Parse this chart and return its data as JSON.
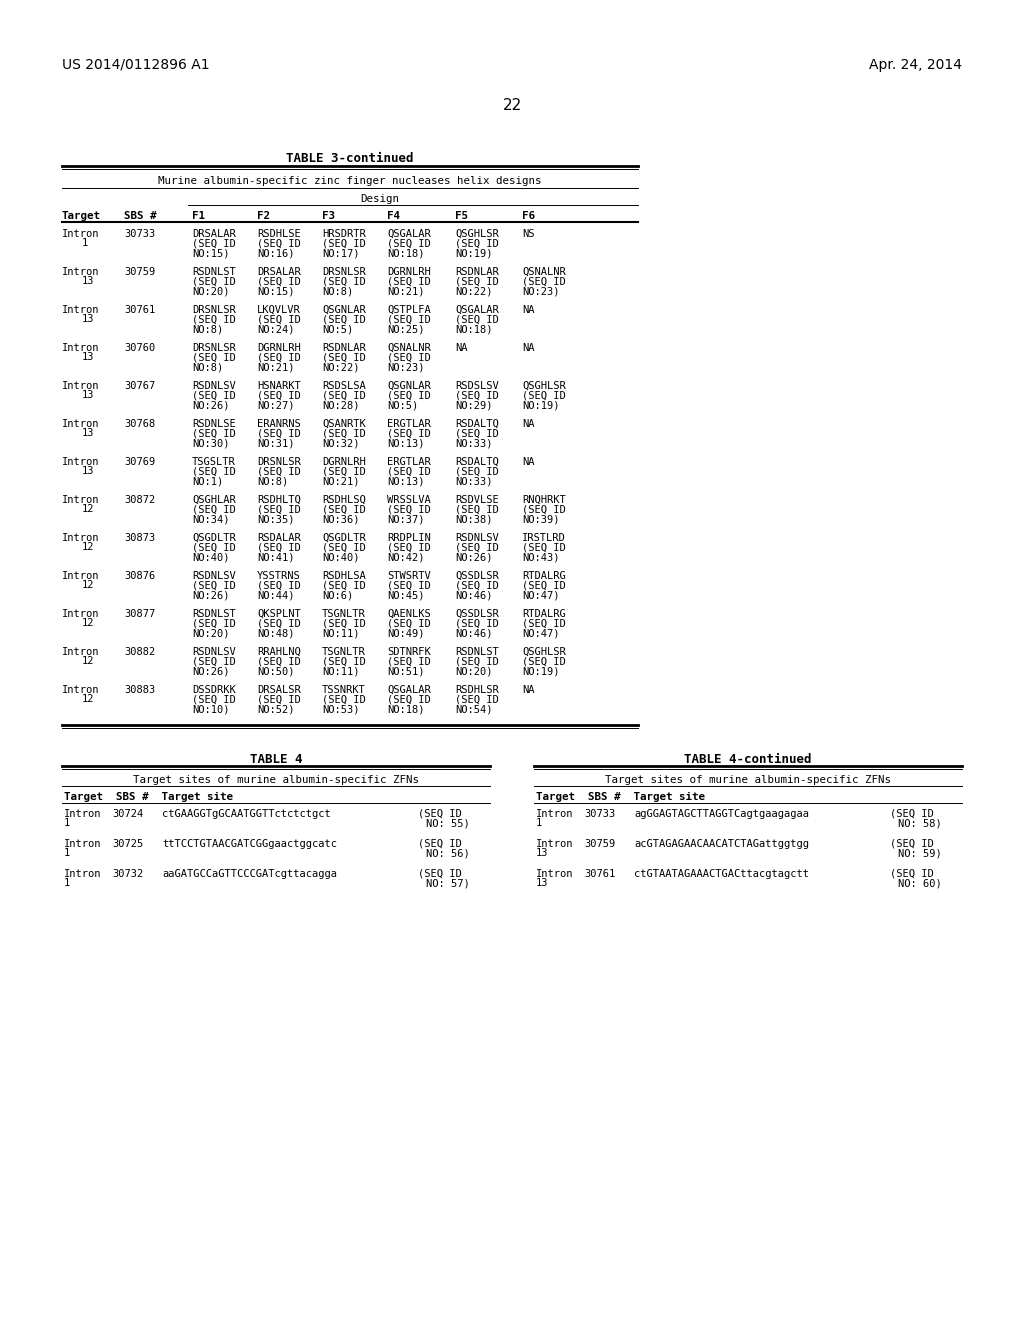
{
  "page_number": "22",
  "patent_left": "US 2014/0112896 A1",
  "patent_right": "Apr. 24, 2014",
  "table3_title": "TABLE 3-continued",
  "table3_subtitle": "Murine albumin-specific zinc finger nucleases helix designs",
  "table3_design_label": "Design",
  "table3_headers": [
    "Target",
    "SBS #",
    "F1",
    "F2",
    "F3",
    "F4",
    "F5",
    "F6"
  ],
  "table3_rows": [
    {
      "target": "Intron",
      "target2": "1",
      "sbs": "30733",
      "f1": "DRSALAR",
      "f1b": "(SEQ ID",
      "f1c": "NO:15)",
      "f2": "RSDHLSE",
      "f2b": "(SEQ ID",
      "f2c": "NO:16)",
      "f3": "HRSDRTR",
      "f3b": "(SEQ ID",
      "f3c": "NO:17)",
      "f4": "QSGALAR",
      "f4b": "(SEQ ID",
      "f4c": "NO:18)",
      "f5": "QSGHLSR",
      "f5b": "(SEQ ID",
      "f5c": "NO:19)",
      "f6": "NS",
      "f6b": "",
      "f6c": ""
    },
    {
      "target": "Intron",
      "target2": "13",
      "sbs": "30759",
      "f1": "RSDNLST",
      "f1b": "(SEQ ID",
      "f1c": "NO:20)",
      "f2": "DRSALAR",
      "f2b": "(SEQ ID",
      "f2c": "NO:15)",
      "f3": "DRSNLSR",
      "f3b": "(SEQ ID",
      "f3c": "NO:8)",
      "f4": "DGRNLRH",
      "f4b": "(SEQ ID",
      "f4c": "NO:21)",
      "f5": "RSDNLAR",
      "f5b": "(SEQ ID",
      "f5c": "NO:22)",
      "f6": "QSNALNR",
      "f6b": "(SEQ ID",
      "f6c": "NO:23)"
    },
    {
      "target": "Intron",
      "target2": "13",
      "sbs": "30761",
      "f1": "DRSNLSR",
      "f1b": "(SEQ ID",
      "f1c": "NO:8)",
      "f2": "LKQVLVR",
      "f2b": "(SEQ ID",
      "f2c": "NO:24)",
      "f3": "QSGNLAR",
      "f3b": "(SEQ ID",
      "f3c": "NO:5)",
      "f4": "QSTPLFA",
      "f4b": "(SEQ ID",
      "f4c": "NO:25)",
      "f5": "QSGALAR",
      "f5b": "(SEQ ID",
      "f5c": "NO:18)",
      "f6": "NA",
      "f6b": "",
      "f6c": ""
    },
    {
      "target": "Intron",
      "target2": "13",
      "sbs": "30760",
      "f1": "DRSNLSR",
      "f1b": "(SEQ ID",
      "f1c": "NO:8)",
      "f2": "DGRNLRH",
      "f2b": "(SEQ ID",
      "f2c": "NO:21)",
      "f3": "RSDNLAR",
      "f3b": "(SEQ ID",
      "f3c": "NO:22)",
      "f4": "QSNALNR",
      "f4b": "(SEQ ID",
      "f4c": "NO:23)",
      "f5": "NA",
      "f5b": "",
      "f5c": "",
      "f6": "NA",
      "f6b": "",
      "f6c": ""
    },
    {
      "target": "Intron",
      "target2": "13",
      "sbs": "30767",
      "f1": "RSDNLSV",
      "f1b": "(SEQ ID",
      "f1c": "NO:26)",
      "f2": "HSNARKT",
      "f2b": "(SEQ ID",
      "f2c": "NO:27)",
      "f3": "RSDSLSA",
      "f3b": "(SEQ ID",
      "f3c": "NO:28)",
      "f4": "QSGNLAR",
      "f4b": "(SEQ ID",
      "f4c": "NO:5)",
      "f5": "RSDSLSV",
      "f5b": "(SEQ ID",
      "f5c": "NO:29)",
      "f6": "QSGHLSR",
      "f6b": "(SEQ ID",
      "f6c": "NO:19)"
    },
    {
      "target": "Intron",
      "target2": "13",
      "sbs": "30768",
      "f1": "RSDNLSE",
      "f1b": "(SEQ ID",
      "f1c": "NO:30)",
      "f2": "ERANRNS",
      "f2b": "(SEQ ID",
      "f2c": "NO:31)",
      "f3": "QSANRTK",
      "f3b": "(SEQ ID",
      "f3c": "NO:32)",
      "f4": "ERGTLAR",
      "f4b": "(SEQ ID",
      "f4c": "NO:13)",
      "f5": "RSDALTQ",
      "f5b": "(SEQ ID",
      "f5c": "NO:33)",
      "f6": "NA",
      "f6b": "",
      "f6c": ""
    },
    {
      "target": "Intron",
      "target2": "13",
      "sbs": "30769",
      "f1": "TSGSLTR",
      "f1b": "(SEQ ID",
      "f1c": "NO:1)",
      "f2": "DRSNLSR",
      "f2b": "(SEQ ID",
      "f2c": "NO:8)",
      "f3": "DGRNLRH",
      "f3b": "(SEQ ID",
      "f3c": "NO:21)",
      "f4": "ERGTLAR",
      "f4b": "(SEQ ID",
      "f4c": "NO:13)",
      "f5": "RSDALTQ",
      "f5b": "(SEQ ID",
      "f5c": "NO:33)",
      "f6": "NA",
      "f6b": "",
      "f6c": ""
    },
    {
      "target": "Intron",
      "target2": "12",
      "sbs": "30872",
      "f1": "QSGHLAR",
      "f1b": "(SEQ ID",
      "f1c": "NO:34)",
      "f2": "RSDHLTQ",
      "f2b": "(SEQ ID",
      "f2c": "NO:35)",
      "f3": "RSDHLSQ",
      "f3b": "(SEQ ID",
      "f3c": "NO:36)",
      "f4": "WRSSLVA",
      "f4b": "(SEQ ID",
      "f4c": "NO:37)",
      "f5": "RSDVLSE",
      "f5b": "(SEQ ID",
      "f5c": "NO:38)",
      "f6": "RNQHRKT",
      "f6b": "(SEQ ID",
      "f6c": "NO:39)"
    },
    {
      "target": "Intron",
      "target2": "12",
      "sbs": "30873",
      "f1": "QSGDLTR",
      "f1b": "(SEQ ID",
      "f1c": "NO:40)",
      "f2": "RSDALAR",
      "f2b": "(SEQ ID",
      "f2c": "NO:41)",
      "f3": "QSGDLTR",
      "f3b": "(SEQ ID",
      "f3c": "NO:40)",
      "f4": "RRDPLIN",
      "f4b": "(SEQ ID",
      "f4c": "NO:42)",
      "f5": "RSDNLSV",
      "f5b": "(SEQ ID",
      "f5c": "NO:26)",
      "f6": "IRSTLRD",
      "f6b": "(SEQ ID",
      "f6c": "NO:43)"
    },
    {
      "target": "Intron",
      "target2": "12",
      "sbs": "30876",
      "f1": "RSDNLSV",
      "f1b": "(SEQ ID",
      "f1c": "NO:26)",
      "f2": "YSSTRNS",
      "f2b": "(SEQ ID",
      "f2c": "NO:44)",
      "f3": "RSDHLSA",
      "f3b": "(SEQ ID",
      "f3c": "NO:6)",
      "f4": "STWSRTV",
      "f4b": "(SEQ ID",
      "f4c": "NO:45)",
      "f5": "QSSDLSR",
      "f5b": "(SEQ ID",
      "f5c": "NO:46)",
      "f6": "RTDALRG",
      "f6b": "(SEQ ID",
      "f6c": "NO:47)"
    },
    {
      "target": "Intron",
      "target2": "12",
      "sbs": "30877",
      "f1": "RSDNLST",
      "f1b": "(SEQ ID",
      "f1c": "NO:20)",
      "f2": "QKSPLNT",
      "f2b": "(SEQ ID",
      "f2c": "NO:48)",
      "f3": "TSGNLTR",
      "f3b": "(SEQ ID",
      "f3c": "NO:11)",
      "f4": "QAENLKS",
      "f4b": "(SEQ ID",
      "f4c": "NO:49)",
      "f5": "QSSDLSR",
      "f5b": "(SEQ ID",
      "f5c": "NO:46)",
      "f6": "RTDALRG",
      "f6b": "(SEQ ID",
      "f6c": "NO:47)"
    },
    {
      "target": "Intron",
      "target2": "12",
      "sbs": "30882",
      "f1": "RSDNLSV",
      "f1b": "(SEQ ID",
      "f1c": "NO:26)",
      "f2": "RRAHLNQ",
      "f2b": "(SEQ ID",
      "f2c": "NO:50)",
      "f3": "TSGNLTR",
      "f3b": "(SEQ ID",
      "f3c": "NO:11)",
      "f4": "SDTNRFK",
      "f4b": "(SEQ ID",
      "f4c": "NO:51)",
      "f5": "RSDNLST",
      "f5b": "(SEQ ID",
      "f5c": "NO:20)",
      "f6": "QSGHLSR",
      "f6b": "(SEQ ID",
      "f6c": "NO:19)"
    },
    {
      "target": "Intron",
      "target2": "12",
      "sbs": "30883",
      "f1": "DSSDRKK",
      "f1b": "(SEQ ID",
      "f1c": "NO:10)",
      "f2": "DRSALSR",
      "f2b": "(SEQ ID",
      "f2c": "NO:52)",
      "f3": "TSSNRKT",
      "f3b": "(SEQ ID",
      "f3c": "NO:53)",
      "f4": "QSGALAR",
      "f4b": "(SEQ ID",
      "f4c": "NO:18)",
      "f5": "RSDHLSR",
      "f5b": "(SEQ ID",
      "f5c": "NO:54)",
      "f6": "NA",
      "f6b": "",
      "f6c": ""
    }
  ],
  "table4_title": "TABLE 4",
  "table4cont_title": "TABLE 4-continued",
  "table4_subtitle": "Target sites of murine albumin-specific ZFNs",
  "table4_rows": [
    {
      "target": "Intron",
      "target2": "1",
      "sbs": "30724",
      "site": "ctGAAGGTgGCAATGGTTctctctgct",
      "seq": "(SEQ ID",
      "no": "NO: 55)"
    },
    {
      "target": "Intron",
      "target2": "1",
      "sbs": "30725",
      "site": "ttTCCTGTAACGATCGGgaactggcatc",
      "seq": "(SEQ ID",
      "no": "NO: 56)"
    },
    {
      "target": "Intron",
      "target2": "1",
      "sbs": "30732",
      "site": "aaGATGCCaGTTCCCGATcgttacagga",
      "seq": "(SEQ ID",
      "no": "NO: 57)"
    }
  ],
  "table4cont_rows": [
    {
      "target": "Intron",
      "target2": "1",
      "sbs": "30733",
      "site": "agGGAGTAGCTTAGGTCagtgaagagaa",
      "seq": "(SEQ ID",
      "no": "NO: 58)"
    },
    {
      "target": "Intron",
      "target2": "13",
      "sbs": "30759",
      "site": "acGTAGAGAACAACATCTAGattggtgg",
      "seq": "(SEQ ID",
      "no": "NO: 59)"
    },
    {
      "target": "Intron",
      "target2": "13",
      "sbs": "30761",
      "site": "ctGTAATAGAAACTGACttacgtagctt",
      "seq": "(SEQ ID",
      "no": "NO: 60)"
    }
  ],
  "background_color": "#ffffff",
  "text_color": "#000000"
}
